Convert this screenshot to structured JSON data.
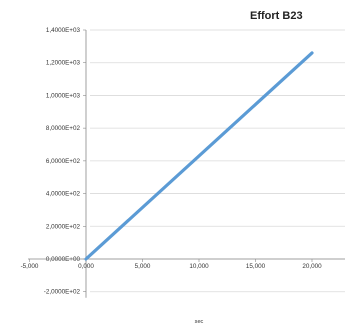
{
  "chart_data": {
    "type": "line",
    "title": "Effort B23",
    "xlabel": "sec",
    "ylabel": "",
    "xlim": [
      -5000,
      25000
    ],
    "ylim": [
      -200,
      1400
    ],
    "x_ticks": [
      -5000,
      0,
      5000,
      10000,
      15000,
      20000
    ],
    "x_tick_labels": [
      "-5,000",
      "0,000",
      "5,000",
      "10,000",
      "15,000",
      "20,000"
    ],
    "y_ticks": [
      -200,
      0,
      200,
      400,
      600,
      800,
      1000,
      1200,
      1400
    ],
    "y_tick_labels": [
      "-2,0000E+02",
      "0,0000E+00",
      "2,0000E+02",
      "4,0000E+02",
      "6,0000E+02",
      "8,0000E+02",
      "1,0000E+03",
      "1,2000E+03",
      "1,4000E+03"
    ],
    "grid": true,
    "series": [
      {
        "x": [
          0,
          20000
        ],
        "y": [
          0,
          1260
        ]
      }
    ],
    "colors": {
      "series": "#5b9bd5",
      "grid": "#d9d9d9",
      "axis": "#888888"
    }
  }
}
